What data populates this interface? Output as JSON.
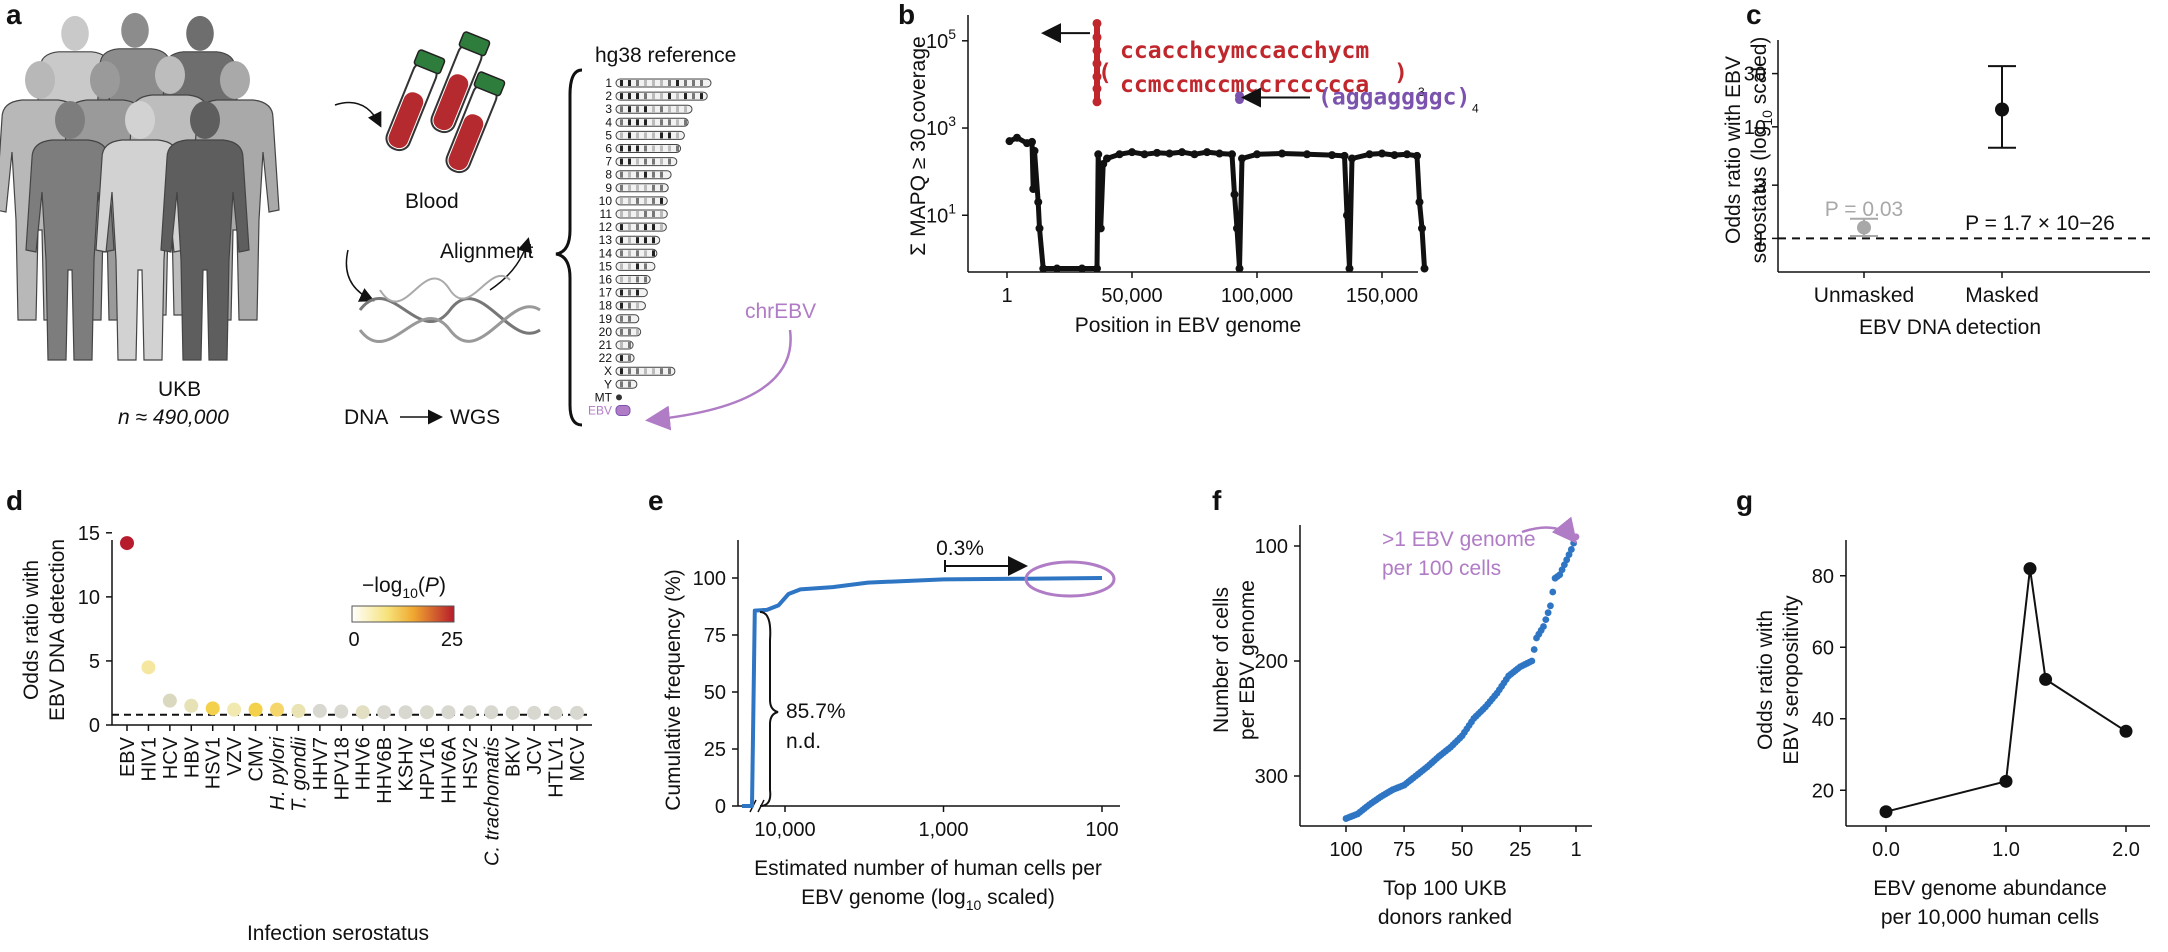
{
  "panels": {
    "a": "a",
    "b": "b",
    "c": "c",
    "d": "d",
    "e": "e",
    "f": "f",
    "g": "g"
  },
  "colors": {
    "red": "#c0272d",
    "purple": "#7b52ae",
    "lilac": "#b07cc6",
    "blue": "#2e75c4",
    "grey": "#a8a8a8",
    "black": "#111111"
  },
  "schematic": {
    "cohort": "UKB",
    "n_label": "n ≈ 490,000",
    "blood": "Blood",
    "alignment": "Alignment",
    "dna": "DNA",
    "wgs": "WGS",
    "reference": "hg38 reference",
    "chromosomes": [
      "1",
      "2",
      "3",
      "4",
      "5",
      "6",
      "7",
      "8",
      "9",
      "10",
      "11",
      "12",
      "13",
      "14",
      "15",
      "16",
      "17",
      "18",
      "19",
      "20",
      "21",
      "22",
      "X",
      "Y",
      "MT",
      "EBV"
    ],
    "chrEBV": "chrEBV"
  },
  "chart_data": [
    {
      "panel": "b",
      "type": "scatter",
      "xlabel": "Position in EBV genome",
      "ylabel": "Σ MAPQ ≥ 30 coverage",
      "x_ticks": [
        "1",
        "50,000",
        "100,000",
        "150,000"
      ],
      "y_ticks": [
        "10^1",
        "10^3",
        "10^5"
      ],
      "y_scale": "log",
      "xlim": [
        1,
        172000
      ],
      "ylim": [
        0.5,
        300000
      ],
      "series": [
        {
          "color": "#111111",
          "points": [
            [
              1000,
              500
            ],
            [
              4000,
              600
            ],
            [
              8000,
              450
            ],
            [
              10000,
              480
            ],
            [
              10500,
              40
            ],
            [
              11000,
              300
            ],
            [
              12500,
              20
            ],
            [
              13000,
              5
            ],
            [
              14500,
              0.6
            ],
            [
              20000,
              0.6
            ],
            [
              30000,
              0.6
            ],
            [
              36000,
              0.6
            ],
            [
              36500,
              250
            ],
            [
              37500,
              5
            ],
            [
              38500,
              150
            ],
            [
              40000,
              200
            ],
            [
              45000,
              250
            ],
            [
              50000,
              280
            ],
            [
              55000,
              250
            ],
            [
              60000,
              270
            ],
            [
              65000,
              260
            ],
            [
              70000,
              280
            ],
            [
              75000,
              250
            ],
            [
              80000,
              280
            ],
            [
              85000,
              260
            ],
            [
              90000,
              250
            ],
            [
              91000,
              30
            ],
            [
              92000,
              5
            ],
            [
              93000,
              0.6
            ],
            [
              94000,
              200
            ],
            [
              100000,
              250
            ],
            [
              110000,
              260
            ],
            [
              120000,
              250
            ],
            [
              130000,
              240
            ],
            [
              135000,
              230
            ],
            [
              136000,
              10
            ],
            [
              137000,
              0.6
            ],
            [
              138000,
              200
            ],
            [
              145000,
              250
            ],
            [
              150000,
              260
            ],
            [
              155000,
              240
            ],
            [
              160000,
              250
            ],
            [
              164000,
              230
            ],
            [
              165000,
              20
            ],
            [
              166000,
              5
            ],
            [
              167000,
              0.6
            ]
          ]
        },
        {
          "color": "#c0272d",
          "points": [
            [
              36000,
              4000
            ],
            [
              36000,
              8000
            ],
            [
              36000,
              15000
            ],
            [
              36000,
              30000
            ],
            [
              36000,
              60000
            ],
            [
              36000,
              120000
            ],
            [
              36000,
              250000
            ]
          ]
        },
        {
          "color": "#7b52ae",
          "points": [
            [
              93000,
              4500
            ],
            [
              93000,
              5500
            ]
          ]
        }
      ],
      "annotations": [
        {
          "text_line1": "ccacchcymccacchycm",
          "text_line2": "ccmccmccmccrccccca",
          "subscript": "3"
        },
        {
          "text": "(aggaggggc)",
          "subscript": "4"
        }
      ]
    },
    {
      "panel": "c",
      "type": "scatter",
      "ylabel": "Odds ratio with EBV serostatus (log10 scaled)",
      "xlabel": "EBV DNA detection",
      "categories": [
        "Unmasked",
        "Masked"
      ],
      "y_scale": "log",
      "y_ticks": [
        "1",
        "3",
        "10",
        "30"
      ],
      "ylim": [
        0.5,
        60
      ],
      "points": [
        {
          "category": "Unmasked",
          "value": 1.25,
          "lo": 1.05,
          "hi": 1.5,
          "color": "#a8a8a8",
          "p_label": "P = 0.03"
        },
        {
          "category": "Masked",
          "value": 14.3,
          "lo": 6.5,
          "hi": 35,
          "color": "#111111",
          "p_label": "P = 1.7 × 10−26"
        }
      ],
      "reference_line": 1
    },
    {
      "panel": "d",
      "type": "scatter",
      "xlabel": "Infection serostatus",
      "ylabel": "Odds ratio with EBV DNA detection",
      "ylim": [
        0,
        16
      ],
      "y_ticks": [
        "0",
        "5",
        "10",
        "15"
      ],
      "reference_line": 0.8,
      "legend": {
        "title": "−log10(P)",
        "min": "0",
        "max": "25"
      },
      "categories": [
        "EBV",
        "HIV1",
        "HCV",
        "HBV",
        "HSV1",
        "VZV",
        "CMV",
        "H. pylori",
        "T. gondii",
        "HHV7",
        "HPV18",
        "HHV6",
        "HHV6B",
        "KSHV",
        "HPV16",
        "HHV6A",
        "HSV2",
        "C. trachomatis",
        "BKV",
        "JCV",
        "HTLV1",
        "MCV"
      ],
      "values": [
        14.2,
        4.5,
        1.9,
        1.5,
        1.3,
        1.2,
        1.2,
        1.2,
        1.1,
        1.1,
        1.05,
        1.0,
        1.0,
        1.0,
        1.0,
        1.0,
        1.0,
        1.0,
        0.95,
        0.95,
        0.95,
        0.95
      ],
      "colors": [
        "#b71c2c",
        "#f6e7a0",
        "#dbd8c0",
        "#e7e2b5",
        "#f3d14b",
        "#f1e9b0",
        "#f3d14b",
        "#f5d66a",
        "#eae3b3",
        "#d8d8d0",
        "#d9d9d2",
        "#e3dfc3",
        "#d8d8d0",
        "#d8d8d0",
        "#dad9ce",
        "#d8d8d0",
        "#d8d8d0",
        "#d8d8d0",
        "#d8d8d0",
        "#d8d8d0",
        "#d8d8d0",
        "#d8d8d0"
      ]
    },
    {
      "panel": "e",
      "type": "line",
      "xlabel": "Estimated number of human cells per EBV genome (log10 scaled)",
      "ylabel": "Cumulative frequency (%)",
      "x_ticks": [
        "10,000",
        "1,000",
        "100"
      ],
      "y_ticks": [
        "0",
        "25",
        "50",
        "75",
        "100"
      ],
      "ylim": [
        0,
        115
      ],
      "x": [
        40000,
        16000,
        15500,
        13000,
        11000,
        9500,
        8000,
        5000,
        3000,
        1000,
        300,
        100
      ],
      "y": [
        0,
        0,
        85.7,
        86,
        88,
        93,
        95,
        96,
        98,
        99.4,
        99.7,
        100
      ],
      "annotations": [
        "85.7%",
        "n.d.",
        "0.3%"
      ]
    },
    {
      "panel": "f",
      "type": "scatter",
      "xlabel": "Top 100 UKB donors ranked",
      "ylabel": "Number of cells per EBV genome",
      "x_ticks": [
        "100",
        "75",
        "50",
        "25",
        "1"
      ],
      "y_ticks": [
        "100",
        "200",
        "300"
      ],
      "ylim": [
        345,
        75
      ],
      "x": [
        100,
        95,
        90,
        85,
        80,
        75,
        70,
        65,
        60,
        55,
        50,
        45,
        40,
        35,
        30,
        25,
        20,
        18,
        15,
        12,
        10,
        8,
        5,
        3,
        1
      ],
      "y": [
        337,
        333,
        325,
        318,
        312,
        308,
        300,
        292,
        283,
        275,
        265,
        250,
        240,
        228,
        213,
        205,
        200,
        180,
        170,
        152,
        128,
        125,
        112,
        103,
        92
      ],
      "annotation": ">1 EBV genome per 100 cells"
    },
    {
      "panel": "g",
      "type": "line",
      "xlabel": "EBV genome abundance per 10,000 human cells",
      "ylabel": "Odds ratio with EBV seropositivity",
      "x_ticks": [
        "0.0",
        "1.0",
        "2.0"
      ],
      "y_ticks": [
        "20",
        "40",
        "60",
        "80"
      ],
      "xlim": [
        -0.1,
        2.1
      ],
      "ylim": [
        10,
        90
      ],
      "x": [
        0.0,
        1.0,
        1.2,
        1.33,
        2.0
      ],
      "y": [
        14,
        22.5,
        82,
        51,
        36.5
      ]
    }
  ]
}
